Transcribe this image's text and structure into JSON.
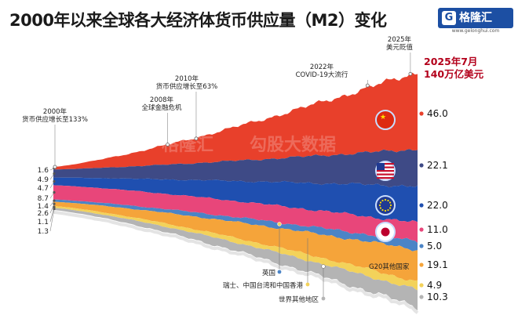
{
  "title": "2000年以来全球各大经济体货币供应量（M2）变化",
  "logo": {
    "mark": "G",
    "name": "格隆汇",
    "url": "www.gelonghui.com"
  },
  "watermark": {
    "name": "格隆汇",
    "tag": "勾股大数据"
  },
  "chart_data": {
    "type": "area",
    "stacked": true,
    "unit": "万亿美元",
    "x_start": 2000,
    "x_end": 2025.5,
    "series": [
      {
        "name": "中国",
        "color": "#e8402b",
        "start": 1.6,
        "end": 46.0
      },
      {
        "name": "美国",
        "color": "#3e4a86",
        "start": 4.9,
        "end": 22.1
      },
      {
        "name": "欧元区",
        "color": "#1f4fb0",
        "start": 4.7,
        "end": 22.0
      },
      {
        "name": "日本",
        "color": "#e8467a",
        "start": 8.7,
        "end": 11.0
      },
      {
        "name": "英国",
        "color": "#4b84c6",
        "start": 1.4,
        "end": 5.0
      },
      {
        "name": "G20其他国家",
        "color": "#f5a43a",
        "start": 2.6,
        "end": 19.1
      },
      {
        "name": "瑞士、中国台湾和中国香港",
        "color": "#f3d25a",
        "start": 1.1,
        "end": 4.9
      },
      {
        "name": "世界其他地区",
        "color": "#b4b4b4",
        "start": 1.3,
        "end": 10.3
      }
    ],
    "left_labels": [
      "1.6",
      "4.9",
      "4.7",
      "8.7",
      "1.4",
      "2.6",
      "1.1",
      "1.3"
    ],
    "right_labels": [
      "46.0",
      "22.1",
      "22.0",
      "11.0",
      "5.0",
      "19.1",
      "4.9",
      "10.3"
    ],
    "total_label_line1": "2025年7月",
    "total_label_line2": "140万亿美元",
    "annotations": [
      {
        "year": 2000,
        "lines": [
          "2000年",
          "货币供应增长至133%"
        ]
      },
      {
        "year": 2008,
        "lines": [
          "2008年",
          "全球金融危机"
        ]
      },
      {
        "year": 2010,
        "lines": [
          "2010年",
          "货币供应增长至63%"
        ]
      },
      {
        "year": 2022,
        "lines": [
          "2022年",
          "COVID-19大流行"
        ]
      },
      {
        "year": 2025,
        "lines": [
          "2025年",
          "美元贬值"
        ]
      }
    ],
    "inline_labels": {
      "uk": "英国",
      "g20": "G20其他国家",
      "swiss": "瑞士、中国台湾和中国香港",
      "rest": "世界其他地区"
    }
  }
}
